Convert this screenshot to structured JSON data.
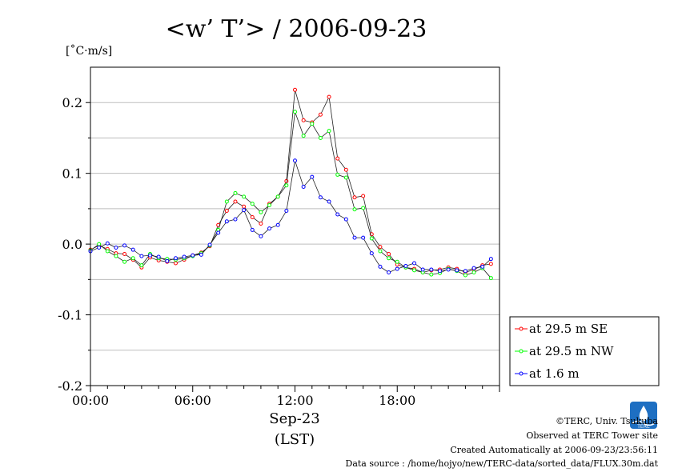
{
  "chart_data": {
    "type": "line",
    "title": "<w’ T’> / 2006-09-23",
    "ylabel": "[˚C·m/s]",
    "xlabel_date": "Sep-23",
    "xlabel_tz": "(LST)",
    "xlim": [
      0,
      24
    ],
    "ylim": [
      -0.2,
      0.25
    ],
    "xticks": [
      {
        "value": 0,
        "label": "00:00"
      },
      {
        "value": 6,
        "label": "06:00"
      },
      {
        "value": 12,
        "label": "12:00"
      },
      {
        "value": 18,
        "label": "18:00"
      }
    ],
    "yticks": [
      {
        "value": -0.2,
        "label": "-0.2"
      },
      {
        "value": -0.1,
        "label": "-0.1"
      },
      {
        "value": 0.0,
        "label": "0.0"
      },
      {
        "value": 0.1,
        "label": "0.1"
      },
      {
        "value": 0.2,
        "label": "0.2"
      }
    ],
    "grid": true,
    "legend_position": "right",
    "x": [
      0.0,
      0.5,
      1.0,
      1.5,
      2.0,
      2.5,
      3.0,
      3.5,
      4.0,
      4.5,
      5.0,
      5.5,
      6.0,
      6.5,
      7.0,
      7.5,
      8.0,
      8.5,
      9.0,
      9.5,
      10.0,
      10.5,
      11.0,
      11.5,
      12.0,
      12.5,
      13.0,
      13.5,
      14.0,
      14.5,
      15.0,
      15.5,
      16.0,
      16.5,
      17.0,
      17.5,
      18.0,
      18.5,
      19.0,
      19.5,
      20.0,
      20.5,
      21.0,
      21.5,
      22.0,
      22.5,
      23.0,
      23.5
    ],
    "series": [
      {
        "name": "at 29.5 m SE",
        "color": "#ff0000",
        "values": [
          -0.008,
          -0.002,
          -0.007,
          -0.013,
          -0.014,
          -0.022,
          -0.033,
          -0.019,
          -0.023,
          -0.025,
          -0.027,
          -0.022,
          -0.016,
          -0.012,
          -0.003,
          0.027,
          0.047,
          0.06,
          0.053,
          0.038,
          0.029,
          0.057,
          0.067,
          0.089,
          0.218,
          0.175,
          0.172,
          0.183,
          0.208,
          0.121,
          0.105,
          0.066,
          0.068,
          0.014,
          -0.004,
          -0.014,
          -0.029,
          -0.033,
          -0.035,
          -0.04,
          -0.037,
          -0.036,
          -0.033,
          -0.035,
          -0.04,
          -0.036,
          -0.03,
          -0.028
        ]
      },
      {
        "name": "at 29.5 m NW",
        "color": "#00ff00",
        "values": [
          -0.009,
          0.0,
          -0.01,
          -0.017,
          -0.025,
          -0.02,
          -0.03,
          -0.014,
          -0.02,
          -0.021,
          -0.022,
          -0.02,
          -0.017,
          -0.013,
          -0.002,
          0.02,
          0.06,
          0.072,
          0.067,
          0.057,
          0.045,
          0.055,
          0.067,
          0.083,
          0.187,
          0.153,
          0.17,
          0.15,
          0.16,
          0.098,
          0.094,
          0.049,
          0.051,
          0.008,
          -0.01,
          -0.02,
          -0.025,
          -0.033,
          -0.037,
          -0.04,
          -0.043,
          -0.041,
          -0.035,
          -0.038,
          -0.044,
          -0.04,
          -0.034,
          -0.048
        ]
      },
      {
        "name": "at 1.6 m",
        "color": "#0000ff",
        "values": [
          -0.01,
          -0.005,
          0.001,
          -0.005,
          -0.002,
          -0.008,
          -0.017,
          -0.016,
          -0.018,
          -0.024,
          -0.02,
          -0.018,
          -0.016,
          -0.015,
          -0.001,
          0.016,
          0.032,
          0.035,
          0.048,
          0.02,
          0.011,
          0.022,
          0.027,
          0.047,
          0.118,
          0.081,
          0.095,
          0.066,
          0.06,
          0.042,
          0.035,
          0.009,
          0.009,
          -0.013,
          -0.032,
          -0.04,
          -0.035,
          -0.031,
          -0.027,
          -0.036,
          -0.036,
          -0.038,
          -0.036,
          -0.037,
          -0.038,
          -0.034,
          -0.032,
          -0.021
        ]
      }
    ]
  },
  "footer": {
    "logo_text": "TERC",
    "copyright": "©TERC, Univ. Tsukuba",
    "observed": "Observed at TERC Tower site",
    "created": "Created Automatically at 2006-09-23/23:56:11",
    "source": "Data source : /home/hojyo/new/TERC-data/sorted_data/FLUX.30m.dat"
  }
}
